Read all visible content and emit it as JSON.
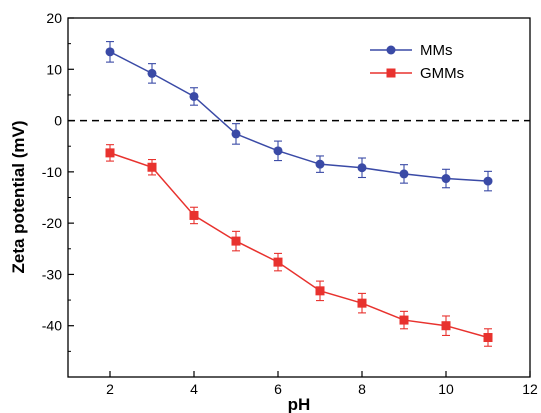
{
  "chart_data": {
    "type": "line",
    "title": "",
    "xlabel": "pH",
    "ylabel": "Zeta potential (mV)",
    "xlim": [
      1,
      12
    ],
    "ylim": [
      -50,
      20
    ],
    "x_ticks": [
      2,
      4,
      6,
      8,
      10,
      12
    ],
    "y_ticks": [
      20,
      10,
      0,
      -10,
      -20,
      -30,
      -40
    ],
    "grid": false,
    "legend_position": "top-right",
    "reference_line": {
      "y": 0,
      "style": "dashed",
      "color": "#000000"
    },
    "x": [
      2,
      3,
      4,
      5,
      6,
      7,
      8,
      9,
      10,
      11
    ],
    "series": [
      {
        "name": "MMs",
        "color": "#3a4aa6",
        "marker": "circle",
        "values": [
          13.4,
          9.2,
          4.7,
          -2.6,
          -5.9,
          -8.5,
          -9.2,
          -10.4,
          -11.3,
          -11.8
        ],
        "errors": [
          2.0,
          1.9,
          1.7,
          2.0,
          1.9,
          1.6,
          1.9,
          1.8,
          1.8,
          1.9
        ]
      },
      {
        "name": "GMMs",
        "color": "#e8322e",
        "marker": "square",
        "values": [
          -6.3,
          -9.1,
          -18.5,
          -23.5,
          -27.6,
          -33.2,
          -35.6,
          -38.9,
          -40.0,
          -42.3
        ],
        "errors": [
          1.6,
          1.5,
          1.6,
          1.9,
          1.7,
          1.9,
          1.9,
          1.7,
          1.9,
          1.7
        ]
      }
    ]
  }
}
